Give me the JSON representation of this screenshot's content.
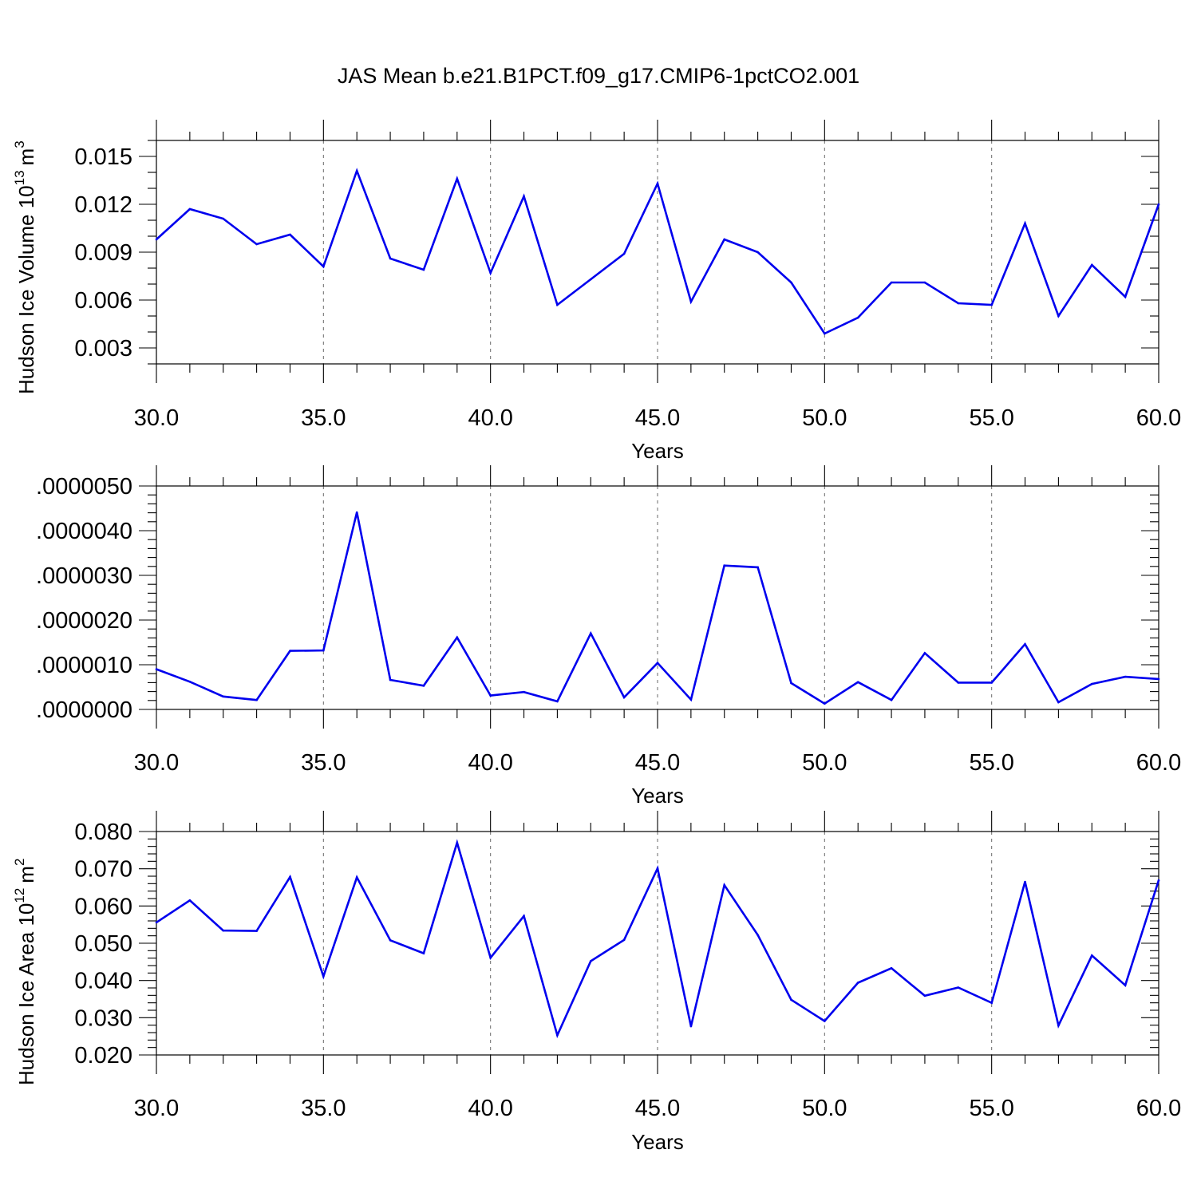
{
  "figure": {
    "title": "JAS Mean b.e21.B1PCT.f09_g17.CMIP6-1pctCO2.001"
  },
  "colors": {
    "series": "#0000ee",
    "axes": "#000000",
    "grid": "#777777"
  },
  "chart_data": [
    {
      "type": "line",
      "title": "",
      "xlabel": "Years",
      "ylabel": "Hudson Ice Volume",
      "ylabel_unit_base": "10",
      "ylabel_unit_exp": "13",
      "ylabel_unit": "m",
      "ylabel_unit_unit_exp": "3",
      "xlim": [
        30,
        60
      ],
      "ylim": [
        0.002,
        0.016
      ],
      "x_ticks": [
        30,
        35,
        40,
        45,
        50,
        55,
        60
      ],
      "x_tick_labels": [
        "30.0",
        "35.0",
        "40.0",
        "45.0",
        "50.0",
        "55.0",
        "60.0"
      ],
      "y_ticks": [
        0.003,
        0.006,
        0.009,
        0.012,
        0.015
      ],
      "y_tick_labels": [
        "0.003",
        "0.006",
        "0.009",
        "0.012",
        "0.015"
      ],
      "grid": "vertical dashed at major x ticks",
      "series": [
        {
          "x": [
            30,
            31,
            32,
            33,
            34,
            35,
            36,
            37,
            38,
            39,
            40,
            41,
            42,
            43,
            44,
            45,
            46,
            47,
            48,
            49,
            50,
            51,
            52,
            53,
            54,
            55,
            56,
            57,
            58,
            59,
            60
          ],
          "values": [
            0.0098,
            0.0117,
            0.0111,
            0.0095,
            0.0101,
            0.0081,
            0.0141,
            0.0086,
            0.0079,
            0.0136,
            0.0077,
            0.0125,
            0.0057,
            0.0073,
            0.0089,
            0.0133,
            0.0059,
            0.0098,
            0.009,
            0.0071,
            0.0039,
            0.0049,
            0.0071,
            0.0071,
            0.0058,
            0.0057,
            0.0108,
            0.005,
            0.0082,
            0.0062,
            0.012
          ]
        }
      ]
    },
    {
      "type": "line",
      "title": "",
      "xlabel": "Years",
      "ylabel": "",
      "xlim": [
        30,
        60
      ],
      "ylim": [
        0.0,
        5e-06
      ],
      "x_ticks": [
        30,
        35,
        40,
        45,
        50,
        55,
        60
      ],
      "x_tick_labels": [
        "30.0",
        "35.0",
        "40.0",
        "45.0",
        "50.0",
        "55.0",
        "60.0"
      ],
      "y_ticks": [
        0.0,
        1e-06,
        2e-06,
        3e-06,
        4e-06,
        5e-06
      ],
      "y_tick_labels": [
        ".0000000",
        ".0000010",
        ".0000020",
        ".0000030",
        ".0000040",
        ".0000050"
      ],
      "grid": "vertical dashed at major x ticks",
      "series": [
        {
          "x": [
            30,
            31,
            32,
            33,
            34,
            35,
            36,
            37,
            38,
            39,
            40,
            41,
            42,
            43,
            44,
            45,
            46,
            47,
            48,
            49,
            50,
            51,
            52,
            53,
            54,
            55,
            56,
            57,
            58,
            59,
            60
          ],
          "values": [
            9e-07,
            6.2e-07,
            2.9e-07,
            2.1e-07,
            1.31e-06,
            1.32e-06,
            4.41e-06,
            6.6e-07,
            5.3e-07,
            1.61e-06,
            3.1e-07,
            3.9e-07,
            1.8e-07,
            1.7e-06,
            2.7e-07,
            1.04e-06,
            2.2e-07,
            3.22e-06,
            3.18e-06,
            5.9e-07,
            1.3e-07,
            6.1e-07,
            2.1e-07,
            1.26e-06,
            6e-07,
            6e-07,
            1.46e-06,
            1.6e-07,
            5.7e-07,
            7.3e-07,
            6.8e-07
          ]
        }
      ]
    },
    {
      "type": "line",
      "title": "",
      "xlabel": "Years",
      "ylabel": "Hudson Ice Area",
      "ylabel_unit_base": "10",
      "ylabel_unit_exp": "12",
      "ylabel_unit": "m",
      "ylabel_unit_unit_exp": "2",
      "xlim": [
        30,
        60
      ],
      "ylim": [
        0.02,
        0.08
      ],
      "x_ticks": [
        30,
        35,
        40,
        45,
        50,
        55,
        60
      ],
      "x_tick_labels": [
        "30.0",
        "35.0",
        "40.0",
        "45.0",
        "50.0",
        "55.0",
        "60.0"
      ],
      "y_ticks": [
        0.02,
        0.03,
        0.04,
        0.05,
        0.06,
        0.07,
        0.08
      ],
      "y_tick_labels": [
        "0.020",
        "0.030",
        "0.040",
        "0.050",
        "0.060",
        "0.070",
        "0.080"
      ],
      "grid": "vertical dashed at major x ticks",
      "series": [
        {
          "x": [
            30,
            31,
            32,
            33,
            34,
            35,
            36,
            37,
            38,
            39,
            40,
            41,
            42,
            43,
            44,
            45,
            46,
            47,
            48,
            49,
            50,
            51,
            52,
            53,
            54,
            55,
            56,
            57,
            58,
            59,
            60
          ],
          "values": [
            0.0556,
            0.0615,
            0.0534,
            0.0533,
            0.0678,
            0.0411,
            0.0677,
            0.0508,
            0.0473,
            0.077,
            0.0461,
            0.0573,
            0.0253,
            0.0452,
            0.0509,
            0.0701,
            0.0277,
            0.0656,
            0.0522,
            0.0348,
            0.0291,
            0.0394,
            0.0433,
            0.0359,
            0.0381,
            0.034,
            0.0665,
            0.0279,
            0.0467,
            0.0387,
            0.0669
          ]
        }
      ]
    }
  ]
}
